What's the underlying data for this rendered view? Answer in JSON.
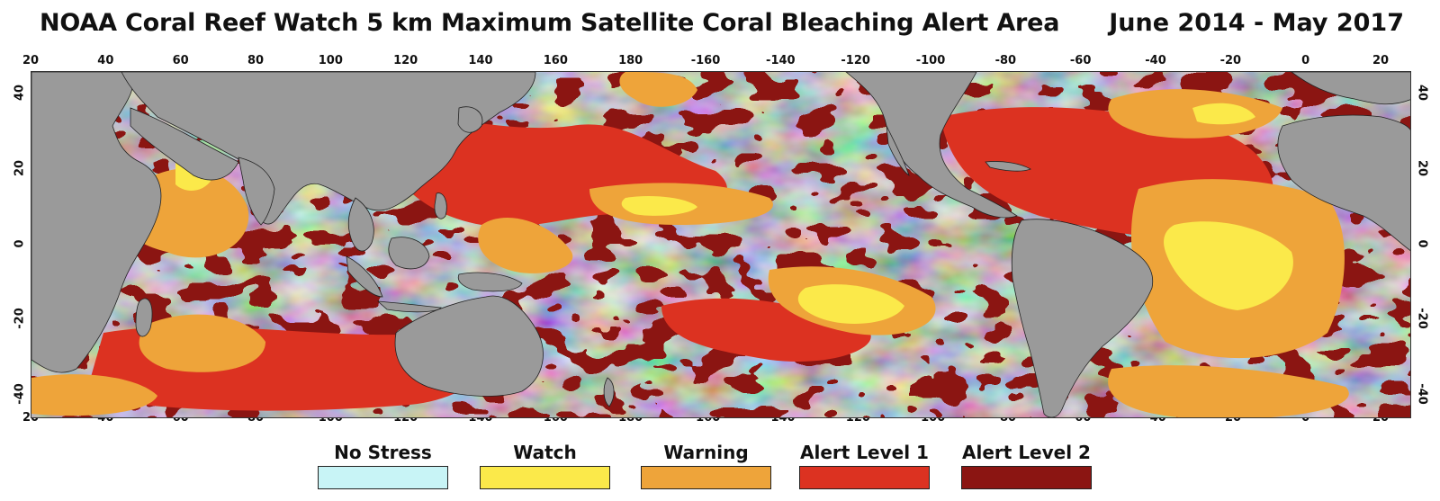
{
  "title": "NOAA Coral Reef Watch 5 km Maximum Satellite Coral Bleaching Alert Area",
  "period": "June 2014 - May 2017",
  "longitude_ticks": [
    "20",
    "40",
    "60",
    "80",
    "100",
    "120",
    "140",
    "160",
    "180",
    "-160",
    "-140",
    "-120",
    "-100",
    "-80",
    "-60",
    "-40",
    "-20",
    "0",
    "20"
  ],
  "latitude_ticks": [
    "40",
    "20",
    "0",
    "-20",
    "-40"
  ],
  "legend": [
    {
      "label": "No Stress",
      "color": "#c8f4f6"
    },
    {
      "label": "Watch",
      "color": "#fbe94a"
    },
    {
      "label": "Warning",
      "color": "#eea43a"
    },
    {
      "label": "Alert Level 1",
      "color": "#dc3221"
    },
    {
      "label": "Alert Level 2",
      "color": "#8b1512"
    }
  ],
  "colors": {
    "land": "#9a9a9a",
    "coastline": "#222222"
  }
}
